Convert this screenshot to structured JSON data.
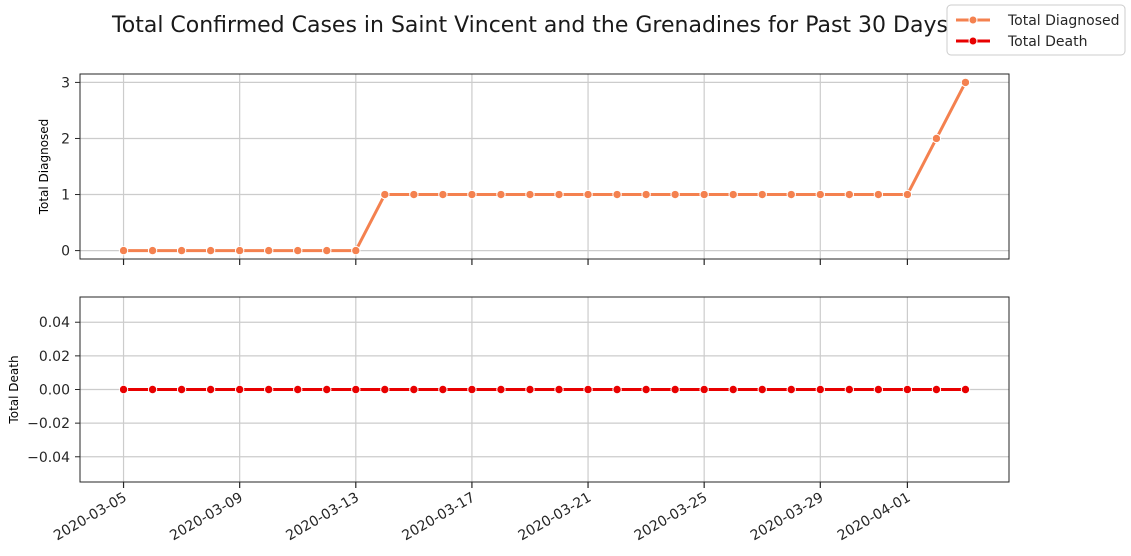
{
  "title": "Total Confirmed Cases in Saint Vincent and the Grenadines for Past 30 Days",
  "legend": {
    "placement": "top-right",
    "items": [
      {
        "label": "Total Diagnosed",
        "color": "#f4814f"
      },
      {
        "label": "Total Death",
        "color": "#e80000"
      }
    ]
  },
  "chart_data": [
    {
      "type": "line",
      "ylabel": "Total Diagnosed",
      "ylim": [
        -0.15,
        3.15
      ],
      "yticks": [
        0,
        1,
        2,
        3
      ],
      "ytick_labels": [
        "0",
        "1",
        "2",
        "3"
      ],
      "grid": true,
      "series": [
        {
          "name": "Total Diagnosed",
          "color": "#f4814f",
          "x": [
            "2020-03-05",
            "2020-03-06",
            "2020-03-07",
            "2020-03-08",
            "2020-03-09",
            "2020-03-10",
            "2020-03-11",
            "2020-03-12",
            "2020-03-13",
            "2020-03-14",
            "2020-03-15",
            "2020-03-16",
            "2020-03-17",
            "2020-03-18",
            "2020-03-19",
            "2020-03-20",
            "2020-03-21",
            "2020-03-22",
            "2020-03-23",
            "2020-03-24",
            "2020-03-25",
            "2020-03-26",
            "2020-03-27",
            "2020-03-28",
            "2020-03-29",
            "2020-03-30",
            "2020-03-31",
            "2020-04-01",
            "2020-04-02",
            "2020-04-03"
          ],
          "values": [
            0,
            0,
            0,
            0,
            0,
            0,
            0,
            0,
            0,
            1,
            1,
            1,
            1,
            1,
            1,
            1,
            1,
            1,
            1,
            1,
            1,
            1,
            1,
            1,
            1,
            1,
            1,
            1,
            2,
            3
          ]
        }
      ]
    },
    {
      "type": "line",
      "ylabel": "Total Death",
      "ylim": [
        -0.055,
        0.055
      ],
      "yticks": [
        -0.04,
        -0.02,
        0,
        0.02,
        0.04
      ],
      "ytick_labels": [
        "−0.04",
        "−0.02",
        "0.00",
        "0.02",
        "0.04"
      ],
      "xticks": [
        "2020-03-05",
        "2020-03-09",
        "2020-03-13",
        "2020-03-17",
        "2020-03-21",
        "2020-03-25",
        "2020-03-29",
        "2020-04-01"
      ],
      "grid": true,
      "series": [
        {
          "name": "Total Death",
          "color": "#e80000",
          "x": [
            "2020-03-05",
            "2020-03-06",
            "2020-03-07",
            "2020-03-08",
            "2020-03-09",
            "2020-03-10",
            "2020-03-11",
            "2020-03-12",
            "2020-03-13",
            "2020-03-14",
            "2020-03-15",
            "2020-03-16",
            "2020-03-17",
            "2020-03-18",
            "2020-03-19",
            "2020-03-20",
            "2020-03-21",
            "2020-03-22",
            "2020-03-23",
            "2020-03-24",
            "2020-03-25",
            "2020-03-26",
            "2020-03-27",
            "2020-03-28",
            "2020-03-29",
            "2020-03-30",
            "2020-03-31",
            "2020-04-01",
            "2020-04-02",
            "2020-04-03"
          ],
          "values": [
            0,
            0,
            0,
            0,
            0,
            0,
            0,
            0,
            0,
            0,
            0,
            0,
            0,
            0,
            0,
            0,
            0,
            0,
            0,
            0,
            0,
            0,
            0,
            0,
            0,
            0,
            0,
            0,
            0,
            0
          ]
        }
      ]
    }
  ]
}
